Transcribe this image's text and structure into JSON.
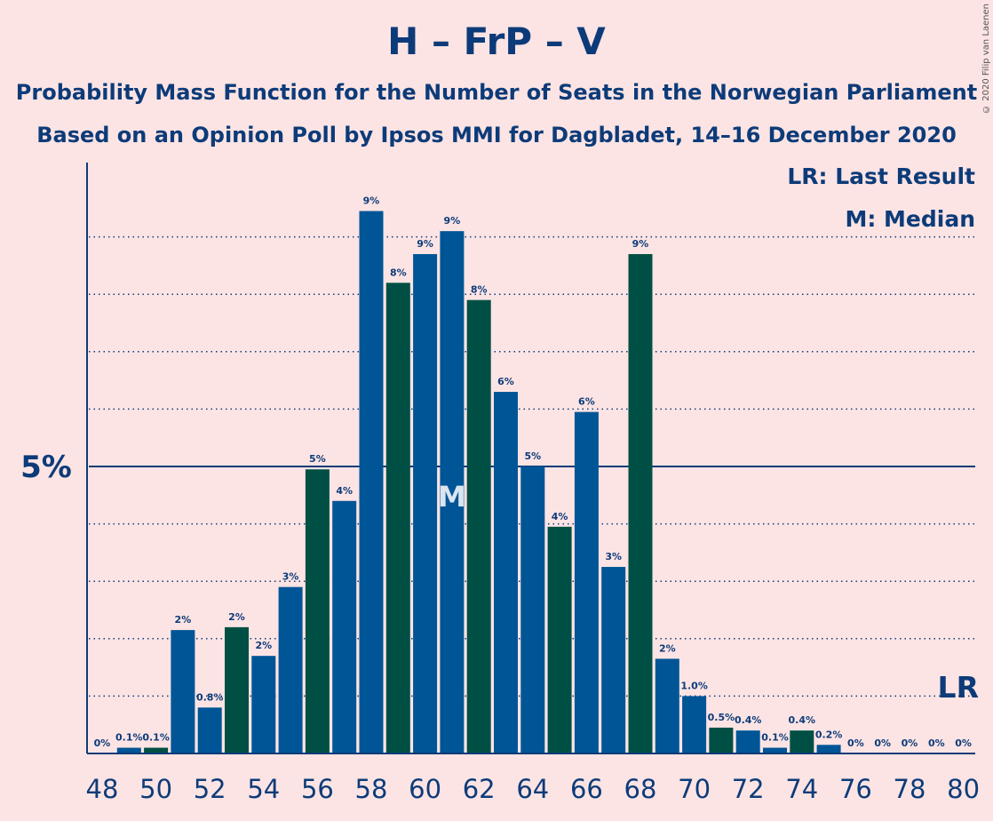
{
  "header": {
    "title": "H – FrP – V",
    "subtitle1": "Probability Mass Function for the Number of Seats in the Norwegian Parliament",
    "subtitle2": "Based on an Opinion Poll by Ipsos MMI for Dagbladet, 14–16 December 2020"
  },
  "legend": {
    "lr": "LR: Last Result",
    "median": "M: Median"
  },
  "copyright": "© 2020 Filip van Laenen",
  "colors": {
    "background": "#fce4e4",
    "blue": "#005596",
    "green": "#004f44",
    "text": "#0d3b79"
  },
  "chart_data": {
    "type": "bar",
    "ylabel_tick": "5%",
    "y_reference": 5,
    "grid": "dotted",
    "median_seat": 61,
    "median_marker": "M",
    "last_result_marker": "LR",
    "last_result_seat": 80,
    "x": [
      48,
      49,
      50,
      51,
      52,
      53,
      54,
      55,
      56,
      57,
      58,
      59,
      60,
      61,
      62,
      63,
      64,
      65,
      66,
      67,
      68,
      69,
      70,
      71,
      72,
      73,
      74,
      75,
      76,
      77,
      78,
      79,
      80
    ],
    "values": [
      0,
      0.1,
      0.1,
      2.15,
      0.8,
      2.2,
      1.7,
      2.9,
      4.95,
      4.4,
      9.45,
      8.2,
      8.7,
      9.1,
      7.9,
      6.3,
      5.0,
      3.95,
      5.95,
      3.25,
      8.7,
      1.65,
      1.0,
      0.45,
      0.4,
      0.1,
      0.4,
      0.15,
      0,
      0,
      0,
      0,
      0
    ],
    "labels": [
      "0%",
      "0.1%",
      "0.1%",
      "2%",
      "0.8%",
      "2%",
      "2%",
      "3%",
      "5%",
      "4%",
      "9%",
      "8%",
      "9%",
      "9%",
      "8%",
      "6%",
      "5%",
      "4%",
      "6%",
      "3%",
      "9%",
      "2%",
      "1.0%",
      "0.5%",
      "0.4%",
      "0.1%",
      "0.4%",
      "0.2%",
      "0%",
      "0%",
      "0%",
      "0%",
      "0%"
    ],
    "x_tick_labels": [
      "48",
      "50",
      "52",
      "54",
      "56",
      "58",
      "60",
      "62",
      "64",
      "66",
      "68",
      "70",
      "72",
      "74",
      "76",
      "78",
      "80"
    ],
    "colors": [
      "blue",
      "blue",
      "green",
      "blue",
      "blue",
      "green",
      "blue",
      "blue",
      "green",
      "blue",
      "blue",
      "green",
      "blue",
      "blue",
      "green",
      "blue",
      "blue",
      "green",
      "blue",
      "blue",
      "green",
      "blue",
      "blue",
      "green",
      "blue",
      "blue",
      "green",
      "blue",
      "blue",
      "green",
      "blue",
      "blue",
      "green"
    ]
  }
}
